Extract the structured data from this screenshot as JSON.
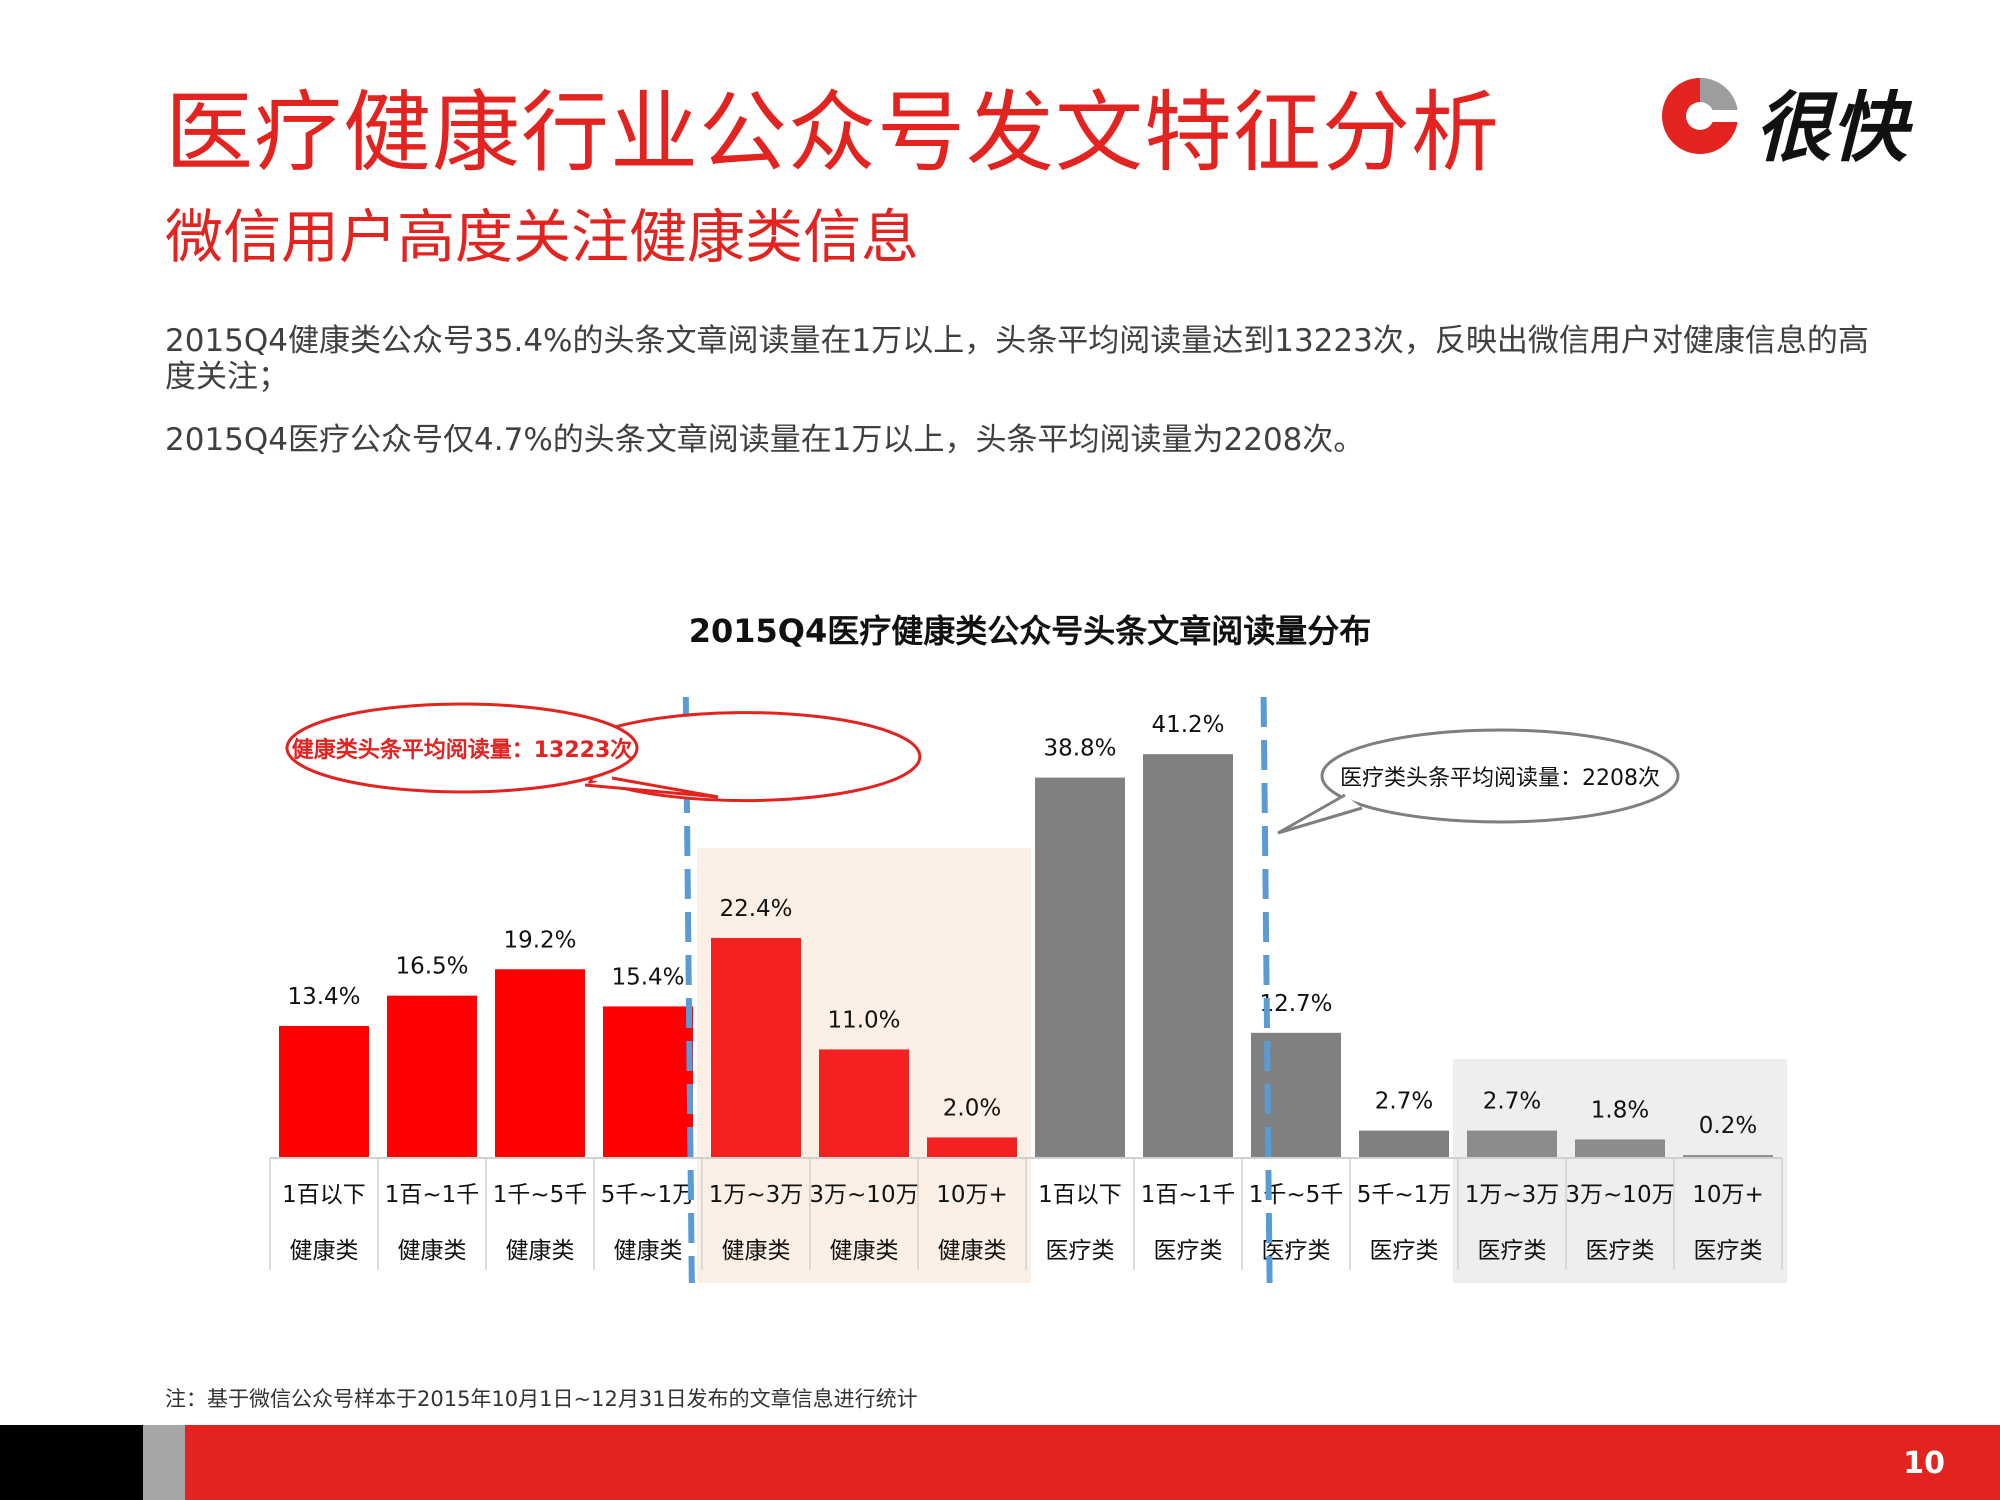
{
  "header": {
    "title": "医疗健康行业公众号发文特征分析",
    "subtitle": "微信用户高度关注健康类信息",
    "logo_text": "很快",
    "logo_icon": "circle-logo-icon",
    "accent_color": "#e3231f"
  },
  "body": {
    "paragraph1": "2015Q4健康类公众号35.4%的头条文章阅读量在1万以上，头条平均阅读量达到13223次，反映出微信用户对健康信息的高度关注；",
    "paragraph2": "2015Q4医疗公众号仅4.7%的头条文章阅读量在1万以上，头条平均阅读量为2208次。"
  },
  "chart_data": {
    "type": "bar",
    "title": "2015Q4医疗健康类公众号头条文章阅读量分布",
    "ylim": [
      0,
      45
    ],
    "grid": false,
    "bars": [
      {
        "range": "1百以下",
        "group": "健康类",
        "value": 13.4,
        "label": "13.4%",
        "color": "#fe0000"
      },
      {
        "range": "1百~1千",
        "group": "健康类",
        "value": 16.5,
        "label": "16.5%",
        "color": "#fe0000"
      },
      {
        "range": "1千~5千",
        "group": "健康类",
        "value": 19.2,
        "label": "19.2%",
        "color": "#fe0000"
      },
      {
        "range": "5千~1万",
        "group": "健康类",
        "value": 15.4,
        "label": "15.4%",
        "color": "#fe0000"
      },
      {
        "range": "1万~3万",
        "group": "健康类",
        "value": 22.4,
        "label": "22.4%",
        "color": "#f52020"
      },
      {
        "range": "3万~10万",
        "group": "健康类",
        "value": 11.0,
        "label": "11.0%",
        "color": "#f52020"
      },
      {
        "range": "10万+",
        "group": "健康类",
        "value": 2.0,
        "label": "2.0%",
        "color": "#f52020"
      },
      {
        "range": "1百以下",
        "group": "医疗类",
        "value": 38.8,
        "label": "38.8%",
        "color": "#808080"
      },
      {
        "range": "1百~1千",
        "group": "医疗类",
        "value": 41.2,
        "label": "41.2%",
        "color": "#808080"
      },
      {
        "range": "1千~5千",
        "group": "医疗类",
        "value": 12.7,
        "label": "12.7%",
        "color": "#808080"
      },
      {
        "range": "5千~1万",
        "group": "医疗类",
        "value": 2.7,
        "label": "2.7%",
        "color": "#808080"
      },
      {
        "range": "1万~3万",
        "group": "医疗类",
        "value": 2.7,
        "label": "2.7%",
        "color": "#8c8c8c"
      },
      {
        "range": "3万~10万",
        "group": "医疗类",
        "value": 1.8,
        "label": "1.8%",
        "color": "#8c8c8c"
      },
      {
        "range": "10万+",
        "group": "医疗类",
        "value": 0.2,
        "label": "0.2%",
        "color": "#8c8c8c"
      }
    ],
    "highlights": [
      {
        "from_index": 4,
        "to_index": 6,
        "color": "#fcefe6"
      },
      {
        "from_index": 11,
        "to_index": 13,
        "color": "#eeeeee"
      }
    ],
    "average_lines": [
      {
        "after_index": 3.85,
        "color": "#5b9bd5",
        "callout": "健康类头条平均阅读量：13223次",
        "callout_color": "#e3231f"
      },
      {
        "after_index": 9.2,
        "color": "#5b9bd5",
        "callout": "医疗类头条平均阅读量：2208次",
        "callout_color": "#7f7f7f"
      }
    ]
  },
  "footer": {
    "note": "注：基于微信公众号样本于2015年10月1日~12月31日发布的文章信息进行统计",
    "page_number": "10"
  }
}
